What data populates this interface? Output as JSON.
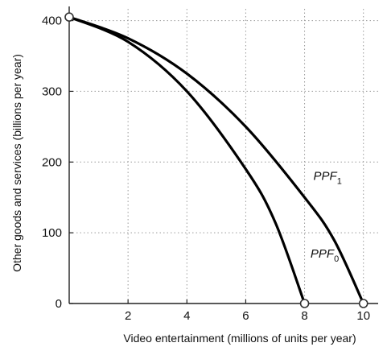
{
  "chart_data": {
    "type": "line",
    "xlabel": "Video entertainment (millions of units per year)",
    "ylabel": "Other goods and services (billions per year)",
    "xlim": [
      0,
      10.5
    ],
    "ylim": [
      0,
      420
    ],
    "x_ticks": [
      "2",
      "4",
      "6",
      "8",
      "10"
    ],
    "x_tick_values": [
      2,
      4,
      6,
      8,
      10
    ],
    "y_ticks": [
      "0",
      "100",
      "200",
      "300",
      "400"
    ],
    "y_tick_values": [
      0,
      100,
      200,
      300,
      400
    ],
    "grid": true,
    "series": [
      {
        "name": "PPF0",
        "label_main": "PPF",
        "label_sub": "0",
        "label_at": [
          8.2,
          65
        ],
        "points": [
          {
            "x": 0,
            "y": 405
          },
          {
            "x": 2,
            "y": 370
          },
          {
            "x": 4,
            "y": 300
          },
          {
            "x": 6,
            "y": 190
          },
          {
            "x": 7,
            "y": 115
          },
          {
            "x": 8,
            "y": 0
          }
        ]
      },
      {
        "name": "PPF1",
        "label_main": "PPF",
        "label_sub": "1",
        "label_at": [
          8.3,
          175
        ],
        "points": [
          {
            "x": 0,
            "y": 405
          },
          {
            "x": 2,
            "y": 375
          },
          {
            "x": 4,
            "y": 325
          },
          {
            "x": 6,
            "y": 250
          },
          {
            "x": 8,
            "y": 150
          },
          {
            "x": 9,
            "y": 90
          },
          {
            "x": 10,
            "y": 0
          }
        ]
      }
    ],
    "endpoints": [
      {
        "x": 0,
        "y": 405
      },
      {
        "x": 8,
        "y": 0
      },
      {
        "x": 10,
        "y": 0
      }
    ]
  }
}
